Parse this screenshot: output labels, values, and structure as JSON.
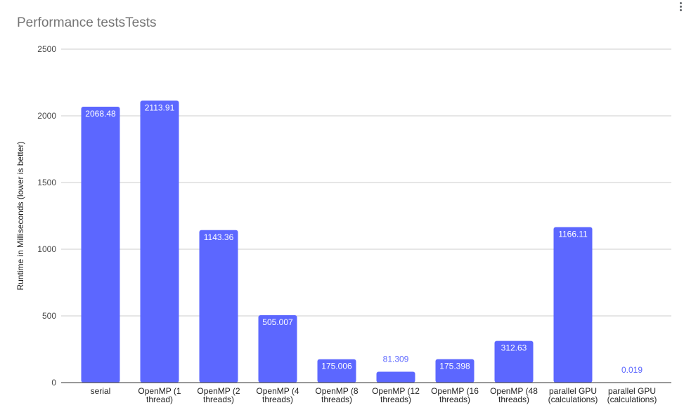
{
  "chart_data": {
    "type": "bar",
    "title": "Performance testsTests",
    "ylabel": "Runtime in Milliseconds (lower is better)",
    "xlabel": "",
    "ylim": [
      0,
      2500
    ],
    "yticks": [
      0,
      500,
      1000,
      1500,
      2000,
      2500
    ],
    "grid": true,
    "bar_color": "#5c67ff",
    "categories": [
      [
        "serial"
      ],
      [
        "OpenMP (1",
        "thread)"
      ],
      [
        "OpenMP (2",
        "threads)"
      ],
      [
        "OpenMP (4",
        "threads)"
      ],
      [
        "OpenMP (8",
        "threads)"
      ],
      [
        "OpenMP (12",
        "threads)"
      ],
      [
        "OpenMP (16",
        "threads)"
      ],
      [
        "OpenMP (48",
        "threads)"
      ],
      [
        "parallel GPU",
        "(calculations)"
      ],
      [
        "parallel GPU",
        "(calculations)"
      ]
    ],
    "values": [
      2068.48,
      2113.91,
      1143.36,
      505.007,
      175.006,
      81.309,
      175.398,
      312.63,
      1166.11,
      0.019
    ],
    "data_labels": [
      "2068.48",
      "2113.91",
      "1143.36",
      "505.007",
      "175.006",
      "81.309",
      "175.398",
      "312.63",
      "1166.11",
      "0.019"
    ]
  }
}
